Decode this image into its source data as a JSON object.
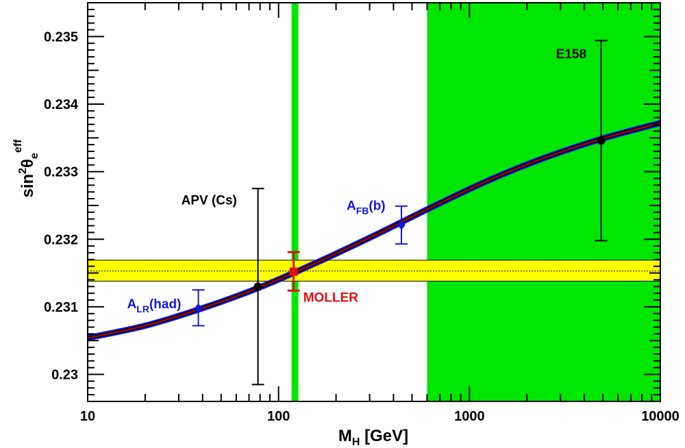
{
  "chart_data": {
    "type": "scatter",
    "x_scale": "log",
    "xlim": [
      10,
      10000
    ],
    "ylim": [
      0.2296,
      0.2355
    ],
    "xlabel": {
      "main": "M",
      "sub": "H",
      "rest": " [GeV]"
    },
    "ylabel": {
      "base": "sin",
      "sup": "2",
      "theta": "θ",
      "sub": "e",
      "eff": "eff"
    },
    "x_ticks": [
      {
        "value": 10,
        "label": "10"
      },
      {
        "value": 100,
        "label": "100"
      },
      {
        "value": 1000,
        "label": "1000"
      },
      {
        "value": 10000,
        "label": "10000"
      }
    ],
    "y_ticks": [
      {
        "value": 0.23,
        "label": "0.23"
      },
      {
        "value": 0.231,
        "label": "0.231"
      },
      {
        "value": 0.232,
        "label": "0.232"
      },
      {
        "value": 0.233,
        "label": "0.233"
      },
      {
        "value": 0.234,
        "label": "0.234"
      },
      {
        "value": 0.235,
        "label": "0.235"
      }
    ],
    "excluded_band": {
      "x_from": 600,
      "x_to": 10000,
      "color": "#00e600"
    },
    "higgs_band": {
      "x_from": 117,
      "x_to": 127,
      "color": "#00e600"
    },
    "moller_band": {
      "y_from": 0.23138,
      "y_to": 0.23169,
      "center": 0.23153,
      "color": "#ffff00"
    },
    "sm_curve": {
      "x": [
        10,
        20,
        40,
        80,
        160,
        320,
        640,
        1280,
        2560,
        5120,
        10000
      ],
      "y": [
        0.23054,
        0.23072,
        0.23098,
        0.23129,
        0.23166,
        0.23206,
        0.23248,
        0.23288,
        0.23322,
        0.2335,
        0.23372
      ],
      "outer_color": "#1010e0",
      "inner_color": "#c00000"
    },
    "points": [
      {
        "label_main": "A",
        "label_sub": "LR",
        "label_rest": "(had)",
        "x": 38,
        "y": 0.23098,
        "err_low": 0.23072,
        "err_high": 0.23125,
        "color": "#1515e0",
        "marker": "diamond"
      },
      {
        "label_main": "APV (Cs)",
        "label_sub": "",
        "label_rest": "",
        "x": 78,
        "y": 0.2313,
        "err_low": 0.22985,
        "err_high": 0.23275,
        "color": "#000000",
        "marker": "circle"
      },
      {
        "label_main": "MOLLER",
        "label_sub": "",
        "label_rest": "",
        "x": 120,
        "y": 0.23152,
        "err_low": 0.23124,
        "err_high": 0.23181,
        "color": "#e01010",
        "marker": "square"
      },
      {
        "label_main": "A",
        "label_sub": "FB",
        "label_rest": "(b)",
        "x": 440,
        "y": 0.23221,
        "err_low": 0.23193,
        "err_high": 0.23249,
        "color": "#1515e0",
        "marker": "diamond"
      },
      {
        "label_main": "E158",
        "label_sub": "",
        "label_rest": "",
        "x": 4900,
        "y": 0.23346,
        "err_low": 0.23198,
        "err_high": 0.23494,
        "color": "#000000",
        "marker": "circle"
      }
    ]
  }
}
